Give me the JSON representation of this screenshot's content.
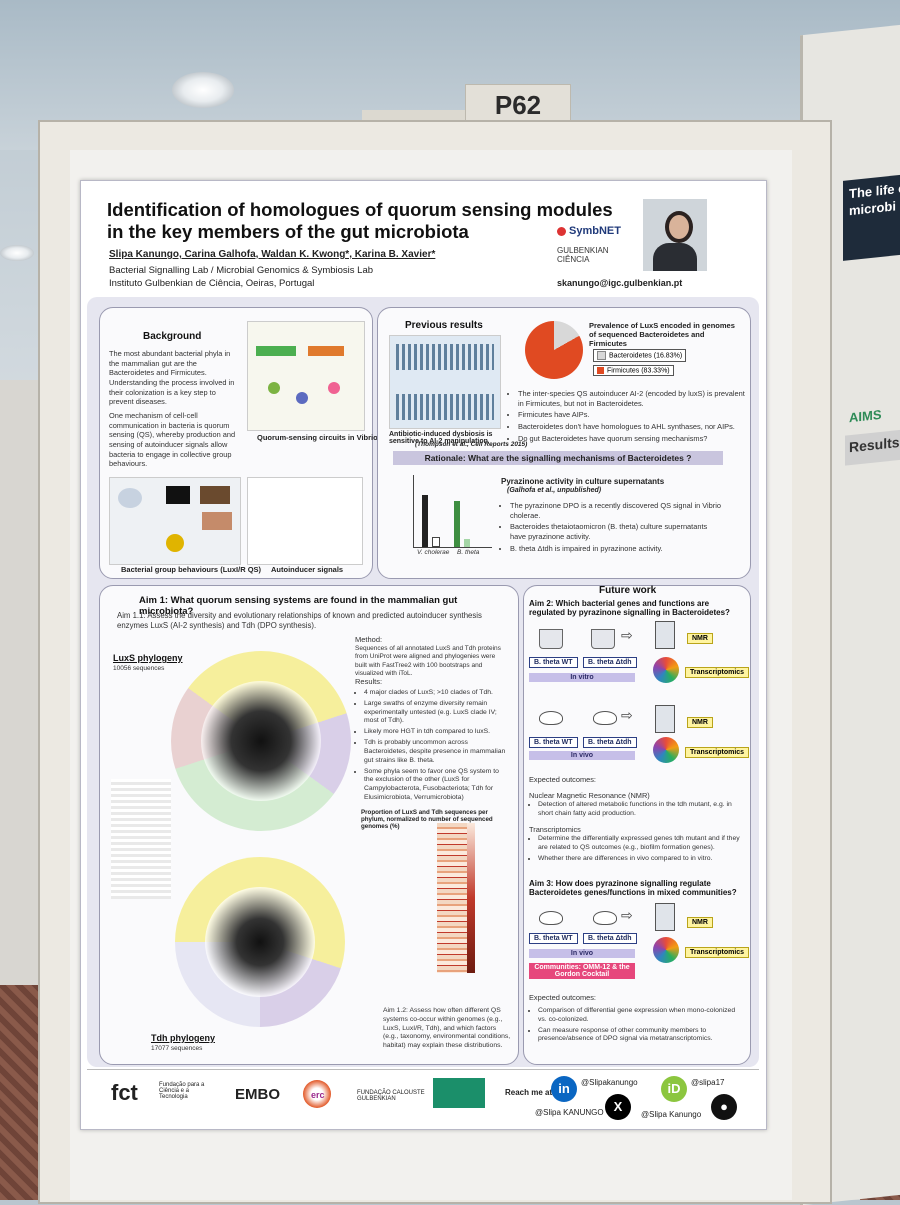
{
  "scene": {
    "board_number": "P62"
  },
  "poster": {
    "title": "Identification of homologues of quorum sensing modules in the key members of the gut microbiota",
    "authors": "Slipa Kanungo, Carina Galhofa, Waldan K. Kwong*, Karina B. Xavier*",
    "affiliation_line1": "Bacterial Signalling Lab / Microbial Genomics & Symbiosis Lab",
    "affiliation_line2": "Instituto Gulbenkian de Ciência, Oeiras, Portugal",
    "email": "skanungo@igc.gulbenkian.pt",
    "logo_symbnet": "SymbNET",
    "logo_gulbenkian_line1": "GULBENKIAN",
    "logo_gulbenkian_line2": "CIÊNCIA"
  },
  "background": {
    "heading": "Background",
    "para1": "The most abundant bacterial phyla in the mammalian gut are the Bacteroidetes and Firmicutes. Understanding the process involved in their colonization is a key step to prevent diseases.",
    "para2": "One mechanism of cell-cell communication in bacteria is quorum sensing (QS), whereby production and sensing of autoinducer signals allow bacteria to engage in collective group behaviours.",
    "fig1_caption": "Quorum-sensing circuits in Vibrio spp.",
    "fig2_caption": "Bacterial group behaviours (LuxI/R QS)",
    "fig3_caption": "Autoinducer signals"
  },
  "previous": {
    "heading": "Previous results",
    "pie_title": "Prevalence of LuxS encoded in genomes of sequenced Bacteroidetes and Firmicutes",
    "legend1": "Bacteroidetes (16.83%)",
    "legend2": "Firmicutes (83.33%)",
    "bullets": [
      "The inter-species QS autoinducer AI-2 (encoded by luxS) is prevalent in Firmicutes, but not in Bacteroidetes.",
      "Firmicutes have AIPs.",
      "Bacteroidetes don't have homologues to AHL synthases, nor AIPs.",
      "Do gut Bacteroidetes have quorum sensing mechanisms?"
    ],
    "fig_caption": "Antibiotic-induced dysbiosis is sensitive to AI-2 manipulation",
    "fig_ref": "(Thompson et al., Cell Reports 2015)",
    "rationale": "Rationale: What are the signalling mechanisms of Bacteroidetes ?",
    "pyr_title": "Pyrazinone activity in culture supernatants",
    "pyr_ref": "(Galhofa et al., unpublished)",
    "pyr_bullets": [
      "The pyrazinone DPO is a recently discovered QS signal in Vibrio cholerae.",
      "Bacteroides thetaiotaomicron (B. theta) culture supernatants have pyrazinone activity.",
      "B. theta Δtdh is impaired in pyrazinone activity."
    ],
    "pyr_x1": "V. cholerae",
    "pyr_x2": "B. theta"
  },
  "aim1": {
    "heading": "Aim 1:  What quorum sensing systems are found in the mammalian gut microbiota?",
    "sub": "Aim 1.1:  Assess the diversity and evolutionary relationships of known and predicted autoinducer synthesis enzymes LuxS (AI-2 synthesis) and Tdh (DPO synthesis).",
    "luxs_title": "LuxS phylogeny",
    "luxs_count": "10056 sequences",
    "tdh_title": "Tdh phylogeny",
    "tdh_count": "17077 sequences",
    "method_heading": "Method:",
    "method": "Sequences of all annotated LuxS and Tdh proteins from UniProt were aligned and phylogenies were built with FastTree2 with 100 bootstraps and visualized with iToL.",
    "results_heading": "Results:",
    "results": [
      "4 major clades of LuxS; >10 clades of Tdh.",
      "Large swaths of enzyme diversity remain experimentally untested (e.g. LuxS clade IV; most of Tdh).",
      "Likely more HGT in tdh compared to luxS.",
      "Tdh is probably uncommon across Bacteroidetes, despite presence in mammalian gut strains like B. theta.",
      "Some phyla seem to favor one QS system to the exclusion of the other (LuxS for Campylobacterota, Fusobacteriota; Tdh for Elusimicrobiota, Verrumicrobiota)"
    ],
    "heatmap_title": "Proportion of LuxS and Tdh sequences per phylum, normalized to number of sequenced genomes (%)",
    "sub2": "Aim 1.2:  Assess how often different QS systems co-occur within genomes (e.g., LuxS, LuxI/R, Tdh), and which factors (e.g., taxonomy, environmental conditions, habitat) may explain these distributions."
  },
  "future": {
    "heading": "Future work",
    "aim2": "Aim 2: Which bacterial genes and functions are regulated by pyrazinone signalling in Bacteroidetes?",
    "wt": "B. theta WT",
    "mut": "B. theta Δtdh",
    "in_vitro": "In vitro",
    "in_vivo": "In vivo",
    "nmr": "NMR",
    "transcriptomics": "Transcriptomics",
    "expected": "Expected outcomes:",
    "nmr_full": "Nuclear Magnetic Resonance (NMR)",
    "nmr_bullet": "Detection of altered metabolic functions in the tdh mutant, e.g. in short chain fatty acid production.",
    "trans_heading": "Transcriptomics",
    "trans_bullets": [
      "Determine the differentially expressed genes tdh mutant and if they are related to QS outcomes (e.g., biofilm formation genes).",
      "Whether there are differences in vivo compared to in vitro."
    ],
    "aim3": "Aim 3: How does pyrazinone signalling regulate Bacteroidetes genes/functions in mixed communities?",
    "communities": "Communities: OMM-12 & the Gordon Cocktail",
    "expected2": "Expected outcomes:",
    "aim3_bullets": [
      "Comparison of differential gene expression when mono-colonized vs. co-colonized.",
      "Can measure response of other community members to presence/absence of DPO signal via metatranscriptomics."
    ]
  },
  "footer": {
    "fct": "fct",
    "fct_sub": "Fundação para a Ciência e a Tecnologia",
    "embo": "EMBO",
    "erc": "erc",
    "calouste": "FUNDAÇÃO CALOUSTE GULBENKIAN",
    "reach": "Reach me at:",
    "handle1": "@Slipakanungo",
    "handle2": "@slipa17",
    "handle3": "@Slipa KANUNGO",
    "handle4": "@Slipa Kanungo"
  },
  "right_poster": {
    "title_fragment1": "The life cy",
    "title_fragment2": "microbi",
    "results": "Results",
    "aims": "AIMS"
  }
}
